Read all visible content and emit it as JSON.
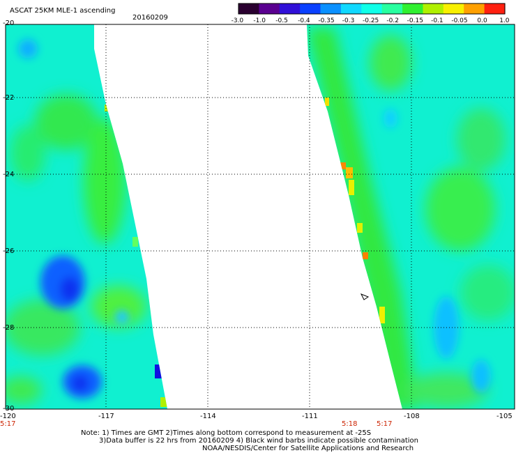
{
  "title": "ASCAT 25KM MLE-1 ascending",
  "date": "20160209",
  "colorbar": {
    "labels": [
      "-3.0",
      "-1.0",
      "-0.5",
      "-0.4",
      "-0.35",
      "-0.3",
      "-0.25",
      "-0.2",
      "-0.15",
      "-0.1",
      "-0.05",
      "0.0",
      "1.0"
    ],
    "colors": [
      "#2a0030",
      "#5a0090",
      "#3010d8",
      "#0a40ff",
      "#0a90ff",
      "#10d8ff",
      "#10ffe8",
      "#28ffa0",
      "#30f030",
      "#b0f000",
      "#f8f000",
      "#ffa000",
      "#ff2010"
    ]
  },
  "axes": {
    "lon_labels": [
      "-120",
      "-117",
      "-114",
      "-111",
      "-108",
      "-105"
    ],
    "lat_labels": [
      "-20",
      "-22",
      "-24",
      "-26",
      "-28",
      "-30"
    ]
  },
  "times": [
    "5:17",
    "5:18",
    "5:17"
  ],
  "notes": [
    "Note: 1) Times are GMT 2)Times along bottom correspond to measurement at -25S",
    "3)Data buffer is 22 hrs from 20160209 4) Black wind barbs indicate possible contamination",
    "NOAA/NESDIS/Center for Satellite Applications and Research"
  ]
}
